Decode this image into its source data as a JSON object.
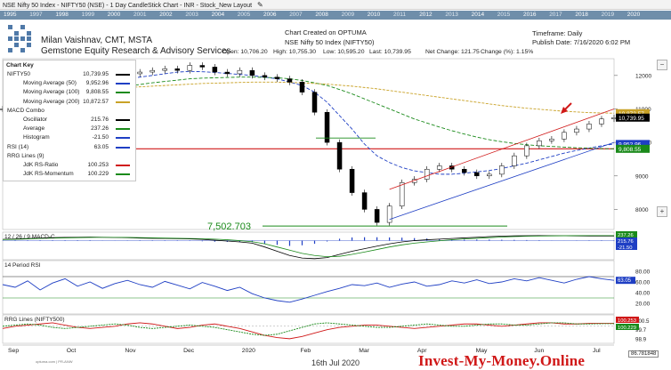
{
  "window": {
    "title": "NSE Nifty 50 Index - NIFTY50 (NSE) - 1 Day CandleStick Chart - INR - Stock_New Layout",
    "edit_icon": "pencil-icon"
  },
  "timebar": {
    "years": [
      "1995",
      "1997",
      "1998",
      "1999",
      "2000",
      "2001",
      "2002",
      "2003",
      "2004",
      "2005",
      "2006",
      "2007",
      "2008",
      "2009",
      "2010",
      "2011",
      "2012",
      "2013",
      "2014",
      "2015",
      "2016",
      "2017",
      "2018",
      "2019",
      "2020"
    ]
  },
  "header": {
    "author": "Milan Vaishnav, CMT, MSTA",
    "company": "Gemstone Equity Research & Advisory Services",
    "created": "Chart Created on OPTUMA",
    "subtitle": "NSE Nifty 50 Index (NIFTY50)",
    "open": "Open: 10,706.20",
    "high": "High: 10,755.30",
    "low": "Low: 10,595.20",
    "last": "Last: 10,739.95",
    "net_change": "Net Change: 121.75",
    "change_pct": "Change (%): 1.15%",
    "timeframe": "Timeframe: Daily",
    "publish_date": "Publish Date: 7/16/2020 6:02 PM"
  },
  "chart_key": {
    "title": "Chart Key",
    "rows": [
      {
        "label": "NIFTY50",
        "value": "10,739.95",
        "color": "#000000",
        "indent": false
      },
      {
        "label": "Moving Average (50)",
        "value": "9,952.96",
        "color": "#1f3fc4",
        "indent": true
      },
      {
        "label": "Moving Average (100)",
        "value": "9,808.55",
        "color": "#1a8a1a",
        "indent": true
      },
      {
        "label": "Moving Average (200)",
        "value": "10,872.57",
        "color": "#c9a227",
        "indent": true
      },
      {
        "label": "MACD Combo",
        "value": "",
        "color": "",
        "indent": false
      },
      {
        "label": "Oscillator",
        "value": "215.76",
        "color": "#000000",
        "indent": true
      },
      {
        "label": "Average",
        "value": "237.26",
        "color": "#1a8a1a",
        "indent": true
      },
      {
        "label": "Histogram",
        "value": "-21.50",
        "color": "#1f3fc4",
        "indent": true
      },
      {
        "label": "RSI (14)",
        "value": "63.05",
        "color": "#1f3fc4",
        "indent": false
      },
      {
        "label": "RRG Lines (9)",
        "value": "",
        "color": "",
        "indent": false
      },
      {
        "label": "JdK RS-Ratio",
        "value": "100.253",
        "color": "#d01818",
        "indent": true
      },
      {
        "label": "JdK RS-Momentum",
        "value": "100.229",
        "color": "#1a8a1a",
        "indent": true
      }
    ]
  },
  "panels": {
    "macd_label": "12 / 26 / 9 MACD-C",
    "rsi_label": "14 Period RSI",
    "rrg_label": "RRG Lines (NIFTY500)"
  },
  "annotations": {
    "low_mark": "7,502.703"
  },
  "footer": {
    "date": "16th Jul 2020",
    "brand": "Invest-My-Money.Online",
    "source": "optuma.com | PR-ANW",
    "corner_value": "86.781848"
  },
  "chart_data": {
    "type": "line",
    "title": "NSE Nifty 50 Index (NIFTY50)",
    "x_labels": [
      "Sep",
      "Oct",
      "Nov",
      "Dec",
      "2020",
      "Feb",
      "Mar",
      "Apr",
      "May",
      "Jun",
      "Jul"
    ],
    "price_axis": {
      "ticks": [
        12000,
        11000,
        10000,
        9000,
        8000
      ],
      "ylim": [
        7400,
        12500
      ]
    },
    "price_tags": [
      {
        "label": "10,872.57",
        "value": 10872.57,
        "color": "#c9a227"
      },
      {
        "label": "10,739.95",
        "value": 10739.95,
        "color": "#000000"
      },
      {
        "label": "9,952.96",
        "value": 9952.96,
        "color": "#1f3fc4"
      },
      {
        "label": "9,808.55",
        "value": 9808.55,
        "color": "#1a8a1a"
      }
    ],
    "horizontal_support": 9808,
    "series": [
      {
        "name": "NIFTY50",
        "color": "#000000",
        "values": [
          11000,
          11050,
          10950,
          11100,
          11300,
          11400,
          11550,
          11750,
          11900,
          11950,
          12050,
          12100,
          12150,
          12200,
          12150,
          12300,
          12250,
          12100,
          12050,
          12150,
          12000,
          11950,
          11900,
          11800,
          11500,
          10900,
          10000,
          9200,
          8500,
          8000,
          7610,
          8100,
          8800,
          8900,
          9200,
          9300,
          9200,
          9100,
          9000,
          9050,
          9300,
          9600,
          9900,
          10050,
          10100,
          10300,
          10400,
          10550,
          10700,
          10740
        ]
      },
      {
        "name": "Moving Average (50)",
        "color": "#1f3fc4",
        "values": [
          11050,
          11100,
          11150,
          11200,
          11300,
          11400,
          11500,
          11600,
          11700,
          11800,
          11900,
          11950,
          12000,
          12050,
          12100,
          12120,
          12110,
          12090,
          12060,
          12030,
          12000,
          11950,
          11900,
          11800,
          11700,
          11500,
          11200,
          10800,
          10400,
          9950,
          9600,
          9400,
          9250,
          9150,
          9100,
          9050,
          9050,
          9080,
          9120,
          9160,
          9220,
          9300,
          9380,
          9480,
          9580,
          9680,
          9760,
          9830,
          9900,
          9953
        ]
      },
      {
        "name": "Moving Average (100)",
        "color": "#1a8a1a",
        "values": [
          11350,
          11350,
          11340,
          11330,
          11350,
          11400,
          11450,
          11500,
          11560,
          11620,
          11680,
          11730,
          11780,
          11820,
          11860,
          11900,
          11920,
          11930,
          11940,
          11950,
          11950,
          11940,
          11930,
          11900,
          11850,
          11780,
          11700,
          11580,
          11450,
          11300,
          11150,
          11000,
          10850,
          10700,
          10580,
          10460,
          10350,
          10250,
          10160,
          10080,
          10020,
          9970,
          9930,
          9900,
          9880,
          9860,
          9840,
          9830,
          9815,
          9808
        ]
      },
      {
        "name": "Moving Average (200)",
        "color": "#c9a227",
        "values": [
          11500,
          11500,
          11500,
          11500,
          11520,
          11540,
          11560,
          11580,
          11600,
          11620,
          11640,
          11660,
          11680,
          11700,
          11720,
          11740,
          11760,
          11770,
          11780,
          11790,
          11800,
          11800,
          11800,
          11790,
          11780,
          11760,
          11740,
          11710,
          11680,
          11640,
          11600,
          11550,
          11500,
          11450,
          11400,
          11350,
          11300,
          11250,
          11200,
          11150,
          11100,
          11060,
          11020,
          10990,
          10960,
          10930,
          10910,
          10890,
          10880,
          10873
        ]
      }
    ],
    "macd": {
      "ylim": [
        -900,
        400
      ],
      "oscillator": [
        60,
        80,
        100,
        120,
        140,
        150,
        160,
        170,
        160,
        150,
        140,
        120,
        110,
        100,
        90,
        80,
        60,
        20,
        -20,
        -60,
        -120,
        -300,
        -500,
        -700,
        -820,
        -850,
        -800,
        -650,
        -500,
        -380,
        -260,
        -150,
        -60,
        0,
        40,
        70,
        100,
        130,
        160,
        190,
        210,
        225,
        232,
        236,
        230,
        228,
        225,
        220,
        218,
        216
      ],
      "average": [
        50,
        60,
        80,
        100,
        120,
        130,
        140,
        150,
        155,
        155,
        150,
        140,
        130,
        120,
        110,
        100,
        90,
        70,
        40,
        0,
        -50,
        -150,
        -300,
        -450,
        -600,
        -700,
        -760,
        -740,
        -650,
        -540,
        -420,
        -300,
        -200,
        -120,
        -60,
        -10,
        40,
        80,
        110,
        140,
        170,
        190,
        205,
        215,
        225,
        230,
        234,
        236,
        237,
        237
      ]
    },
    "rsi": {
      "ylim": [
        0,
        100
      ],
      "ticks": [
        80,
        60,
        40,
        20
      ],
      "values": [
        55,
        50,
        62,
        45,
        58,
        66,
        52,
        60,
        48,
        57,
        63,
        55,
        50,
        61,
        54,
        47,
        59,
        52,
        44,
        50,
        38,
        30,
        25,
        22,
        28,
        35,
        42,
        48,
        55,
        53,
        58,
        50,
        56,
        60,
        52,
        55,
        62,
        58,
        64,
        57,
        60,
        66,
        62,
        68,
        63,
        58,
        65,
        70,
        66,
        63
      ]
    },
    "rrg": {
      "ylim": [
        98.5,
        101
      ],
      "ticks": [
        100.5,
        99.7,
        98.9
      ],
      "rs_ratio": [
        99.8,
        100.0,
        100.1,
        100.2,
        100.3,
        100.1,
        99.9,
        99.8,
        99.9,
        100.0,
        100.2,
        100.3,
        100.2,
        100.0,
        99.8,
        99.9,
        100.1,
        100.2,
        100.0,
        99.8,
        99.5,
        99.2,
        99.0,
        98.9,
        99.1,
        99.4,
        99.7,
        99.9,
        100.0,
        100.1,
        100.1,
        100.0,
        99.9,
        99.8,
        99.9,
        100.0,
        100.1,
        100.2,
        100.2,
        100.1,
        100.0,
        100.1,
        100.2,
        100.3,
        100.3,
        100.2,
        100.2,
        100.25,
        100.25,
        100.253
      ],
      "rs_momentum": [
        100.0,
        100.1,
        100.2,
        100.1,
        99.9,
        99.8,
        99.9,
        100.0,
        100.1,
        100.2,
        100.1,
        99.9,
        99.8,
        99.9,
        100.0,
        100.1,
        100.0,
        99.9,
        99.7,
        99.5,
        99.3,
        99.2,
        99.3,
        99.6,
        99.9,
        100.2,
        100.3,
        100.2,
        100.1,
        100.0,
        99.9,
        99.9,
        100.0,
        100.1,
        100.2,
        100.1,
        100.0,
        100.0,
        100.1,
        100.2,
        100.2,
        100.1,
        100.1,
        100.2,
        100.3,
        100.3,
        100.2,
        100.2,
        100.22,
        100.229
      ]
    }
  }
}
